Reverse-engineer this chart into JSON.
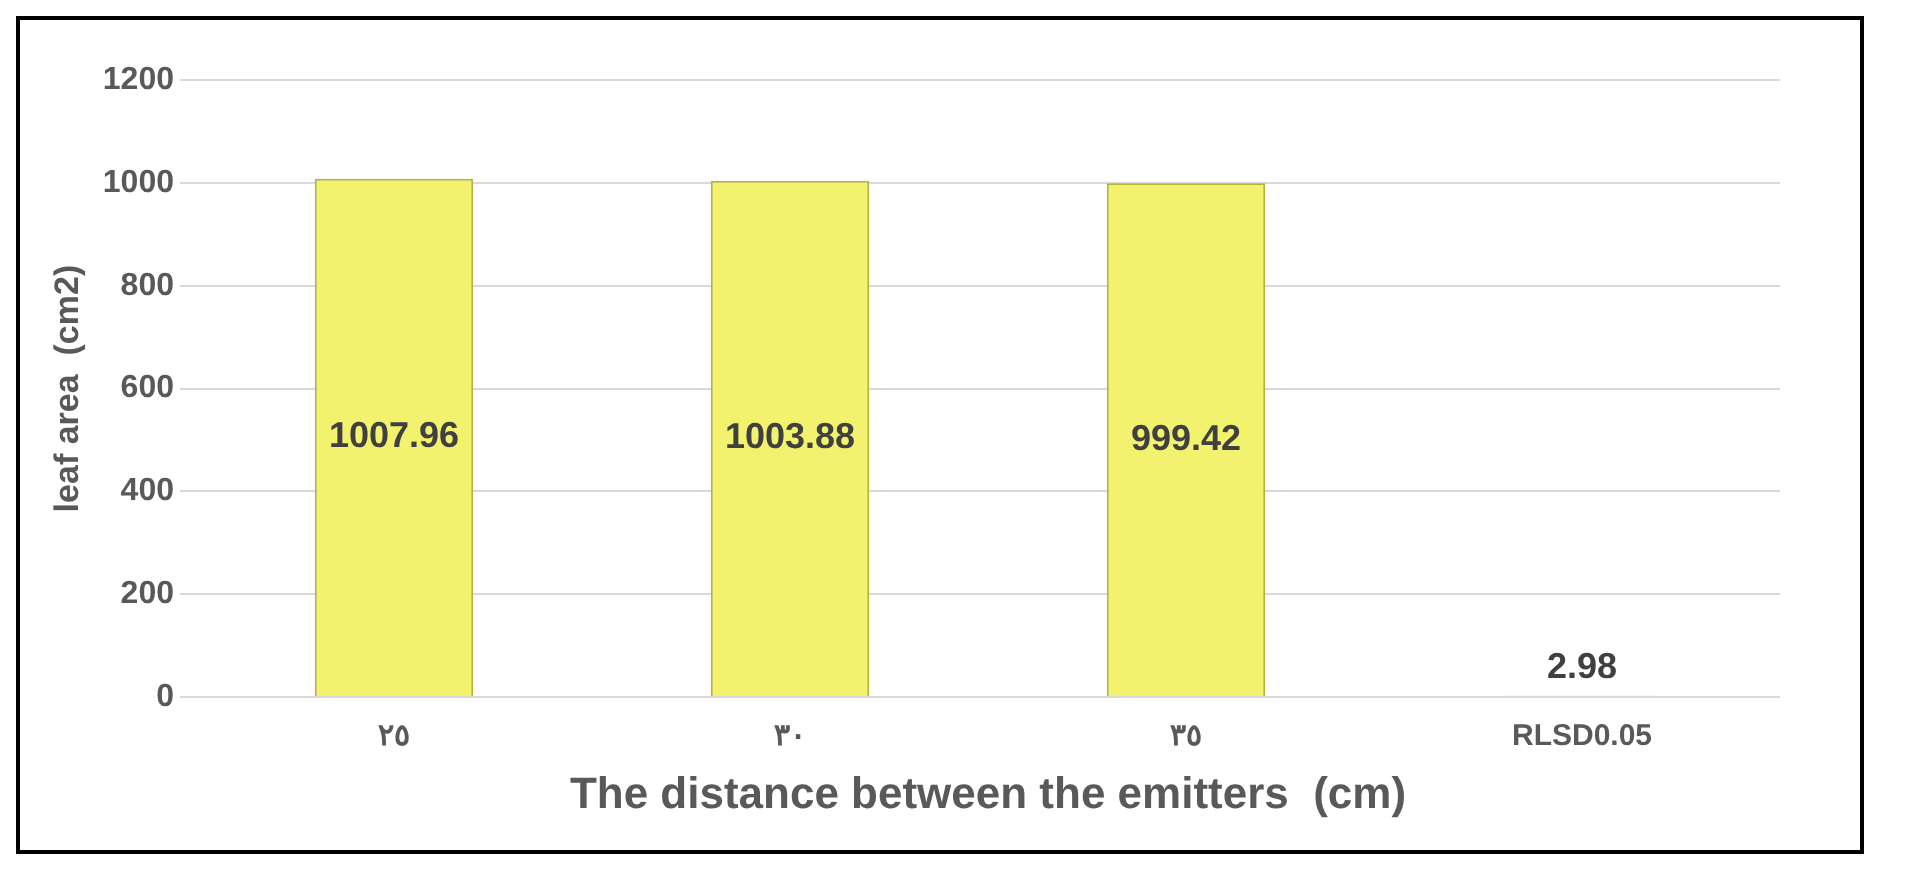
{
  "chart_data": {
    "type": "bar",
    "categories": [
      "٢٥",
      "٣٠",
      "٣٥",
      "RLSD0.05"
    ],
    "values": [
      1007.96,
      1003.88,
      999.42,
      2.98
    ],
    "color": "#f2f26e",
    "xlabel": "The distance between the emitters  (cm)",
    "ylabel": "leaf area  (cm2)",
    "ylim": [
      0,
      1200
    ],
    "yticks": [
      0,
      200,
      400,
      600,
      800,
      1000,
      1200
    ],
    "grid": "y",
    "data_labels": true
  }
}
